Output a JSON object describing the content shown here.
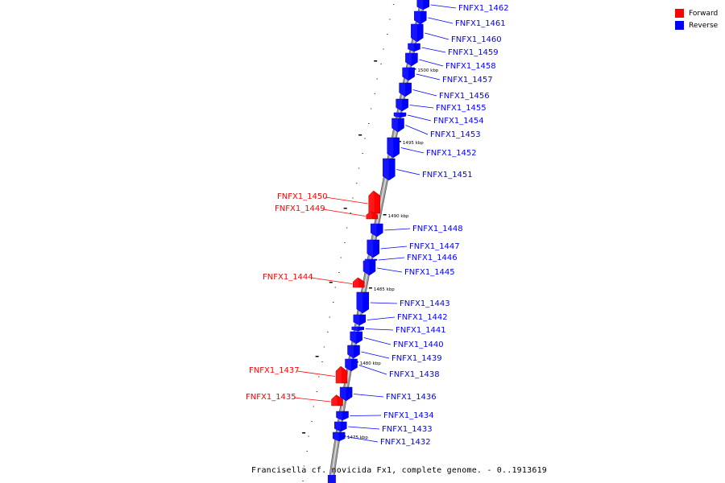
{
  "legend": {
    "forward_label": "Forward",
    "forward_color": "#ff0000",
    "reverse_label": "Reverse",
    "reverse_color": "#0000ff"
  },
  "caption": "Francisella cf. novicida Fx1, complete genome. - 0..1913619",
  "scale_labels": [
    "1500 kbp",
    "1495 kbp",
    "1490 kbp",
    "1485 kbp",
    "1480 kbp",
    "1475 kbp"
  ],
  "genes": [
    {
      "name": "FNFX1_1462",
      "strand": "reverse"
    },
    {
      "name": "FNFX1_1461",
      "strand": "reverse"
    },
    {
      "name": "FNFX1_1460",
      "strand": "reverse"
    },
    {
      "name": "FNFX1_1459",
      "strand": "reverse"
    },
    {
      "name": "FNFX1_1458",
      "strand": "reverse"
    },
    {
      "name": "FNFX1_1457",
      "strand": "reverse"
    },
    {
      "name": "FNFX1_1456",
      "strand": "reverse"
    },
    {
      "name": "FNFX1_1455",
      "strand": "reverse"
    },
    {
      "name": "FNFX1_1454",
      "strand": "reverse"
    },
    {
      "name": "FNFX1_1453",
      "strand": "reverse"
    },
    {
      "name": "FNFX1_1452",
      "strand": "reverse"
    },
    {
      "name": "FNFX1_1451",
      "strand": "reverse"
    },
    {
      "name": "FNFX1_1450",
      "strand": "forward"
    },
    {
      "name": "FNFX1_1449",
      "strand": "forward"
    },
    {
      "name": "FNFX1_1448",
      "strand": "reverse"
    },
    {
      "name": "FNFX1_1447",
      "strand": "reverse"
    },
    {
      "name": "FNFX1_1446",
      "strand": "reverse"
    },
    {
      "name": "FNFX1_1445",
      "strand": "reverse"
    },
    {
      "name": "FNFX1_1444",
      "strand": "forward"
    },
    {
      "name": "FNFX1_1443",
      "strand": "reverse"
    },
    {
      "name": "FNFX1_1442",
      "strand": "reverse"
    },
    {
      "name": "FNFX1_1441",
      "strand": "reverse"
    },
    {
      "name": "FNFX1_1440",
      "strand": "reverse"
    },
    {
      "name": "FNFX1_1439",
      "strand": "reverse"
    },
    {
      "name": "FNFX1_1438",
      "strand": "reverse"
    },
    {
      "name": "FNFX1_1437",
      "strand": "forward"
    },
    {
      "name": "FNFX1_1436",
      "strand": "reverse"
    },
    {
      "name": "FNFX1_1435",
      "strand": "forward"
    },
    {
      "name": "FNFX1_1434",
      "strand": "reverse"
    },
    {
      "name": "FNFX1_1433",
      "strand": "reverse"
    },
    {
      "name": "FNFX1_1432",
      "strand": "reverse"
    }
  ]
}
